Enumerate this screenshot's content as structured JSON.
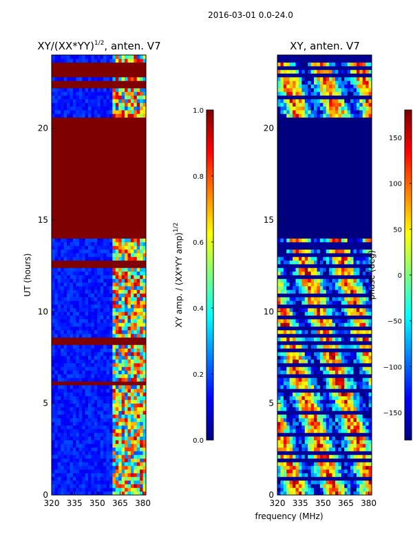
{
  "figure": {
    "suptitle": "2016-03-01 0.0-24.0",
    "xlabel": "frequency (MHz)"
  },
  "colormap": {
    "name": "jet",
    "stops": [
      "#00007f",
      "#0000ff",
      "#007fff",
      "#00ffff",
      "#7fff7f",
      "#ffff00",
      "#ff7f00",
      "#ff0000",
      "#7f0000"
    ]
  },
  "chart_data": [
    {
      "type": "heatmap",
      "title_main": "XY/(XX*YY)",
      "title_sup": "1/2",
      "title_suffix": ", anten. V7",
      "ylabel": "UT (hours)",
      "xlim": [
        320,
        382
      ],
      "ylim": [
        0,
        24
      ],
      "xticks": [
        320,
        335,
        350,
        365,
        380
      ],
      "yticks": [
        0,
        5,
        10,
        15,
        20
      ],
      "colorbar": {
        "label_main": "XY amp. / (XX*YY amp)",
        "label_sup": "1/2",
        "range": [
          0.0,
          1.0
        ],
        "ticks": [
          "0.0",
          "0.2",
          "0.4",
          "0.6",
          "0.8",
          "1.0"
        ],
        "tick_values": [
          0.0,
          0.2,
          0.4,
          0.6,
          0.8,
          1.0
        ]
      },
      "saturated_bands_hours": [
        [
          14.0,
          20.5
        ],
        [
          22.1,
          22.6
        ],
        [
          22.9,
          23.6
        ],
        [
          8.2,
          8.6
        ],
        [
          12.5,
          12.7
        ],
        [
          6.0,
          6.2
        ]
      ],
      "active_freq_range_mhz": [
        360,
        382
      ],
      "background_value": 0.15
    },
    {
      "type": "heatmap",
      "title_main": "XY, anten. V7",
      "ylabel": "",
      "xlim": [
        320,
        382
      ],
      "ylim": [
        0,
        24
      ],
      "xticks": [
        320,
        335,
        350,
        365,
        380
      ],
      "yticks": [
        0,
        5,
        10,
        15,
        20
      ],
      "colorbar": {
        "label_main": "phase (deg)",
        "range": [
          -180,
          180
        ],
        "ticks": [
          "−150",
          "−100",
          "−50",
          "0",
          "50",
          "100",
          "150"
        ],
        "tick_values": [
          -150,
          -100,
          -50,
          0,
          50,
          100,
          150
        ]
      },
      "low_band_hours": [
        14.0,
        20.5
      ],
      "low_band_value": -180,
      "dark_lines_hours": [
        0.9,
        1.9,
        2.4,
        3.3,
        3.6,
        4.4,
        5.7,
        6.5,
        7.1,
        7.9,
        8.3,
        8.7,
        9.2,
        9.7,
        10.3,
        11.0,
        11.8,
        12.4,
        13.0,
        13.6,
        21.6,
        22.2,
        23.0,
        23.4,
        23.8
      ]
    }
  ]
}
